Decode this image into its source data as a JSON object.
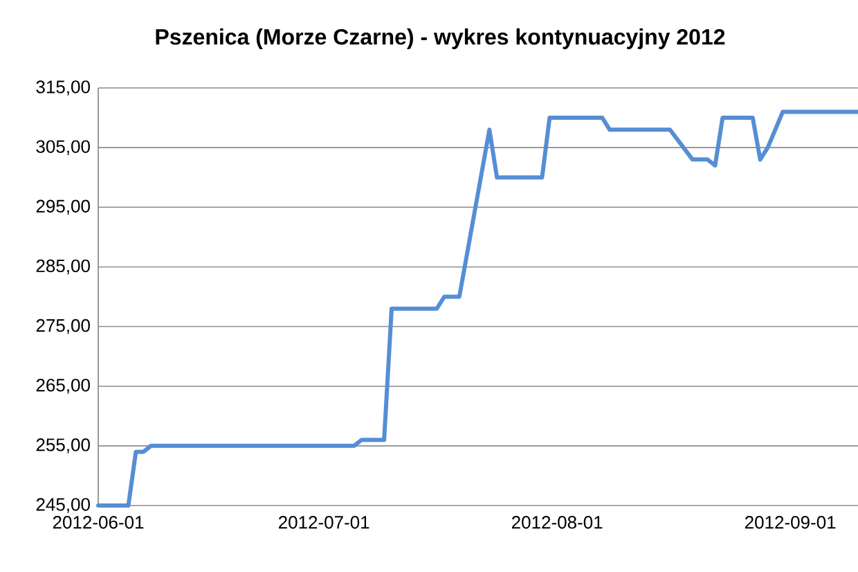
{
  "chart_data": {
    "type": "line",
    "title": "Pszenica (Morze Czarne) - wykres kontynuacyjny 2012",
    "x": [
      "2012-06-01",
      "2012-06-05",
      "2012-06-06",
      "2012-06-07",
      "2012-06-08",
      "2012-07-05",
      "2012-07-06",
      "2012-07-09",
      "2012-07-10",
      "2012-07-16",
      "2012-07-17",
      "2012-07-19",
      "2012-07-23",
      "2012-07-24",
      "2012-07-30",
      "2012-07-31",
      "2012-08-07",
      "2012-08-08",
      "2012-08-16",
      "2012-08-19",
      "2012-08-21",
      "2012-08-22",
      "2012-08-23",
      "2012-08-27",
      "2012-08-28",
      "2012-08-29",
      "2012-08-31",
      "2012-09-10"
    ],
    "series": [
      {
        "color": "#558ed5",
        "values": [
          245,
          245,
          254,
          254,
          255,
          255,
          256,
          256,
          278,
          278,
          280,
          280,
          308,
          300,
          300,
          310,
          310,
          308,
          308,
          303,
          303,
          302,
          310,
          310,
          303,
          305,
          311,
          311
        ]
      }
    ],
    "xlim": [
      "2012-06-01",
      "2012-09-10"
    ],
    "xticks": [
      "2012-06-01",
      "2012-07-01",
      "2012-08-01",
      "2012-09-01"
    ],
    "ylim": [
      245,
      315
    ],
    "yticks": [
      {
        "value": 245,
        "label": "245,00"
      },
      {
        "value": 255,
        "label": "255,00"
      },
      {
        "value": 265,
        "label": "265,00"
      },
      {
        "value": 275,
        "label": "275,00"
      },
      {
        "value": 285,
        "label": "285,00"
      },
      {
        "value": 295,
        "label": "295,00"
      },
      {
        "value": 305,
        "label": "305,00"
      },
      {
        "value": 315,
        "label": "315,00"
      }
    ],
    "grid": "y",
    "marker": "none",
    "line_style": "solid"
  }
}
